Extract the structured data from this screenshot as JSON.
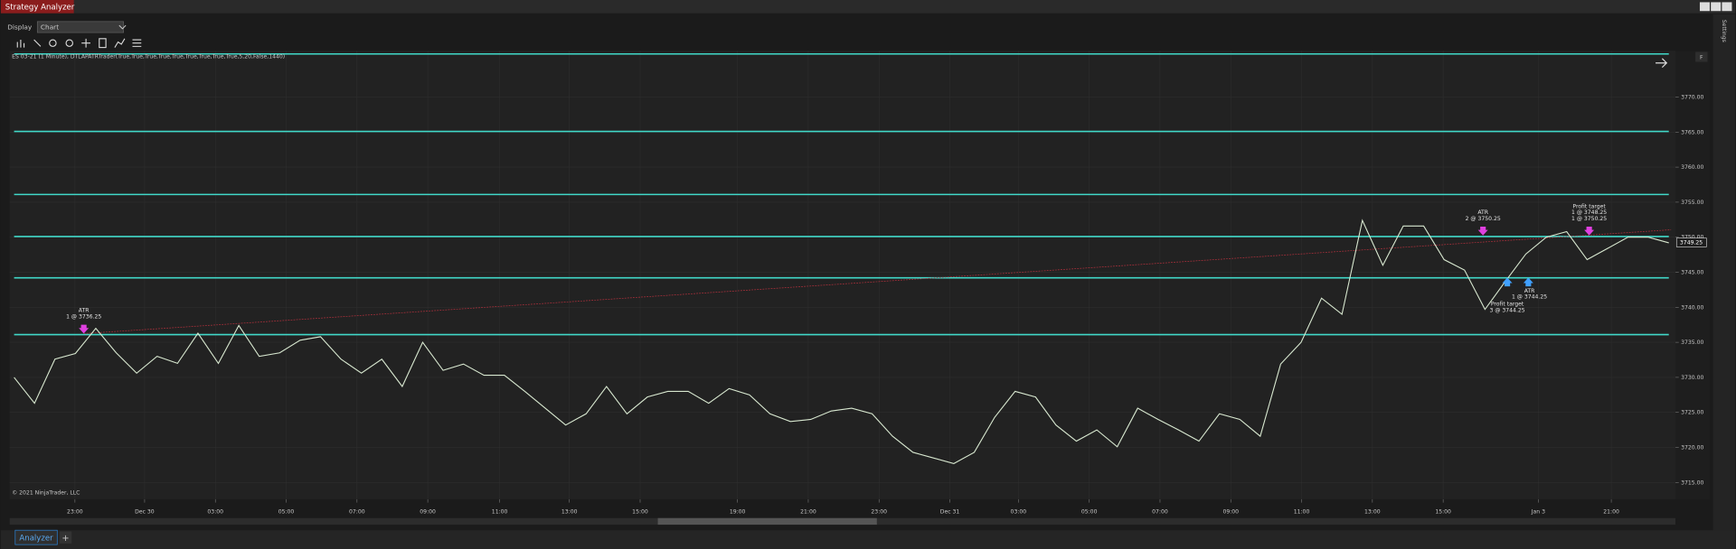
{
  "window": {
    "title": "Strategy Analyzer",
    "side_tab": "Settings"
  },
  "toolbar": {
    "display_label": "Display",
    "display_value": "Chart"
  },
  "tabs": {
    "active": "Analyzer",
    "add": "+"
  },
  "chart_data": {
    "type": "line",
    "title": "ES 03-21 (1 Minute), DTLAPATRTrader(True,True,True,True,True,True,True,True,True,5,20,False,1440)",
    "footnote": "© 2021 NinjaTrader, LLC",
    "panel_button": "F",
    "color": "#d8e8d0",
    "level_color": "#40d8c8",
    "ylim": [
      3712.6,
      3776.6
    ],
    "yticks": [
      {
        "value": 3715,
        "label": "3715.00"
      },
      {
        "value": 3720,
        "label": "3720.00"
      },
      {
        "value": 3725,
        "label": "3725.00"
      },
      {
        "value": 3730,
        "label": "3730.00"
      },
      {
        "value": 3735,
        "label": "3735.00"
      },
      {
        "value": 3740,
        "label": "3740.00"
      },
      {
        "value": 3745,
        "label": "3745.00"
      },
      {
        "value": 3750,
        "label": "3750.00"
      },
      {
        "value": 3755,
        "label": "3755.00"
      },
      {
        "value": 3760,
        "label": "3760.00"
      },
      {
        "value": 3765,
        "label": "3765.00"
      },
      {
        "value": 3770,
        "label": "3770.00"
      }
    ],
    "xlabels": [
      "23:00",
      "Dec 30",
      "03:00",
      "05:00",
      "07:00",
      "09:00",
      "11:00",
      "13:00",
      "15:00",
      "19:00",
      "21:00",
      "23:00",
      "Dec 31",
      "03:00",
      "05:00",
      "07:00",
      "09:00",
      "11:00",
      "13:00",
      "15:00",
      "Jan 3",
      "21:00"
    ],
    "grid": true,
    "last_price": 3749.25,
    "levels": [
      3776.15,
      3765.1,
      3756.1,
      3750.1,
      3744.2,
      3736.1
    ],
    "values": [
      3730,
      3726.3,
      3732.6,
      3733.4,
      3737,
      3733.5,
      3730.6,
      3733,
      3732,
      3736.3,
      3732,
      3737.4,
      3733,
      3733.5,
      3735.3,
      3735.8,
      3732.6,
      3730.6,
      3732.6,
      3728.7,
      3735,
      3731,
      3731.9,
      3730.3,
      3730.3,
      3728,
      3725.6,
      3723.2,
      3724.8,
      3728.7,
      3724.8,
      3727.2,
      3728,
      3728,
      3726.3,
      3728.4,
      3727.5,
      3724.8,
      3723.7,
      3724,
      3725.2,
      3725.6,
      3724.8,
      3721.6,
      3719.3,
      3718.5,
      3717.7,
      3719.3,
      3724.3,
      3728,
      3727.2,
      3723.2,
      3720.9,
      3722.5,
      3720.1,
      3725.6,
      3724,
      3722.5,
      3720.9,
      3724.8,
      3724,
      3721.6,
      3731.9,
      3735,
      3741.3,
      3739,
      3752.4,
      3746,
      3751.6,
      3751.6,
      3746.8,
      3745.3,
      3739.7,
      3743.7,
      3747.6,
      3750,
      3750.8,
      3746.8,
      3748.4,
      3750,
      3750,
      3749.2
    ],
    "annotations": [
      {
        "lines": [
          "ATR",
          "1 @ 3736.25"
        ],
        "price": 3736.25
      },
      {
        "lines": [
          "ATR",
          "2 @ 3750.25"
        ],
        "price": 3750.25
      },
      {
        "lines": [
          "Profit target",
          "1 @ 3748.25",
          "1 @ 3750.25"
        ],
        "price": 3750.25
      },
      {
        "lines": [
          "ATR",
          "1 @ 3744.25"
        ],
        "price": 3744.25
      },
      {
        "lines": [
          "Profit target",
          "3 @ 3744.25"
        ],
        "price": 3744.25
      }
    ]
  }
}
